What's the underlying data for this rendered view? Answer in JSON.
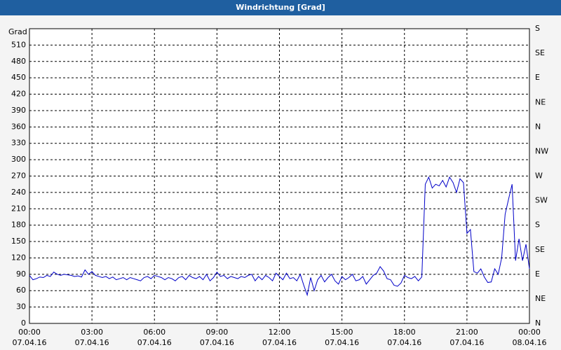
{
  "chart_data": {
    "type": "line",
    "title": "Windrichtung [Grad]",
    "y_label": "Grad",
    "x": [
      0,
      10,
      20,
      30,
      40,
      50,
      60,
      70,
      80,
      90,
      100,
      110,
      120,
      130,
      140,
      150,
      160,
      170,
      180,
      190,
      200,
      210,
      220,
      230,
      240,
      250,
      260,
      270,
      280,
      290,
      300,
      310,
      320,
      330,
      340,
      350,
      360,
      370,
      380,
      390,
      400,
      410,
      420,
      430,
      440,
      450,
      460,
      470,
      480,
      490,
      500,
      510,
      520,
      530,
      540,
      550,
      560,
      570,
      580,
      590,
      600,
      610,
      620,
      630,
      640,
      650,
      660,
      670,
      680,
      690,
      700,
      710,
      720,
      730,
      740,
      750,
      760,
      770,
      780,
      790,
      800,
      810,
      820,
      830,
      840,
      850,
      860,
      870,
      880,
      890,
      900,
      910,
      920,
      930,
      940,
      950,
      960,
      970,
      980,
      990,
      1000,
      1010,
      1020,
      1030,
      1040,
      1050,
      1060,
      1070,
      1080,
      1090,
      1100,
      1110,
      1120,
      1130,
      1140,
      1150,
      1160,
      1170,
      1180,
      1190,
      1200,
      1210,
      1220,
      1230,
      1240,
      1250,
      1260,
      1270,
      1280,
      1290,
      1300,
      1310,
      1320,
      1330,
      1340,
      1350,
      1360,
      1370,
      1380,
      1390,
      1400,
      1410,
      1420,
      1430,
      1440
    ],
    "series": [
      {
        "color": "#0000c8",
        "values": [
          88,
          80,
          82,
          85,
          84,
          88,
          86,
          94,
          90,
          88,
          90,
          89,
          88,
          86,
          87,
          85,
          98,
          90,
          95,
          88,
          86,
          84,
          86,
          82,
          85,
          80,
          82,
          84,
          80,
          84,
          82,
          80,
          78,
          84,
          86,
          82,
          88,
          86,
          84,
          80,
          84,
          82,
          78,
          84,
          86,
          80,
          88,
          84,
          82,
          86,
          80,
          90,
          78,
          84,
          94,
          86,
          88,
          82,
          86,
          84,
          82,
          86,
          84,
          88,
          90,
          78,
          86,
          80,
          88,
          84,
          78,
          92,
          86,
          80,
          92,
          82,
          84,
          78,
          90,
          70,
          52,
          84,
          60,
          80,
          88,
          76,
          84,
          90,
          78,
          72,
          86,
          80,
          84,
          90,
          78,
          80,
          86,
          72,
          80,
          88,
          92,
          104,
          96,
          82,
          80,
          70,
          68,
          74,
          88,
          84,
          82,
          86,
          78,
          85,
          255,
          268,
          248,
          255,
          252,
          262,
          250,
          268,
          258,
          240,
          265,
          258,
          165,
          172,
          95,
          92,
          100,
          85,
          75,
          76,
          100,
          90,
          120,
          200,
          228,
          255,
          115,
          155,
          115,
          145,
          100
        ]
      }
    ],
    "xlim": [
      0,
      1440
    ],
    "xticks": [
      {
        "value": 0,
        "label": "00:00"
      },
      {
        "value": 180,
        "label": "03:00"
      },
      {
        "value": 360,
        "label": "06:00"
      },
      {
        "value": 540,
        "label": "09:00"
      },
      {
        "value": 720,
        "label": "12:00"
      },
      {
        "value": 900,
        "label": "15:00"
      },
      {
        "value": 1080,
        "label": "18:00"
      },
      {
        "value": 1260,
        "label": "21:00"
      },
      {
        "value": 1440,
        "label": "00:00"
      }
    ],
    "xtick_dates": [
      "07.04.16",
      "07.04.16",
      "07.04.16",
      "07.04.16",
      "07.04.16",
      "07.04.16",
      "07.04.16",
      "07.04.16",
      "08.04.16"
    ],
    "ylim": [
      0,
      540
    ],
    "yticks": [
      0,
      30,
      60,
      90,
      120,
      150,
      180,
      210,
      240,
      270,
      300,
      330,
      360,
      390,
      420,
      450,
      480,
      510
    ],
    "y2lim": [
      0,
      540
    ],
    "y2ticks": [
      {
        "value": 0,
        "label": "N"
      },
      {
        "value": 45,
        "label": "NE"
      },
      {
        "value": 90,
        "label": "E"
      },
      {
        "value": 135,
        "label": "SE"
      },
      {
        "value": 180,
        "label": "S"
      },
      {
        "value": 225,
        "label": "SW"
      },
      {
        "value": 270,
        "label": "W"
      },
      {
        "value": 315,
        "label": "NW"
      },
      {
        "value": 360,
        "label": "N"
      },
      {
        "value": 405,
        "label": "NE"
      },
      {
        "value": 450,
        "label": "E"
      },
      {
        "value": 495,
        "label": "SE"
      },
      {
        "value": 540,
        "label": "S"
      }
    ],
    "grid": true
  }
}
